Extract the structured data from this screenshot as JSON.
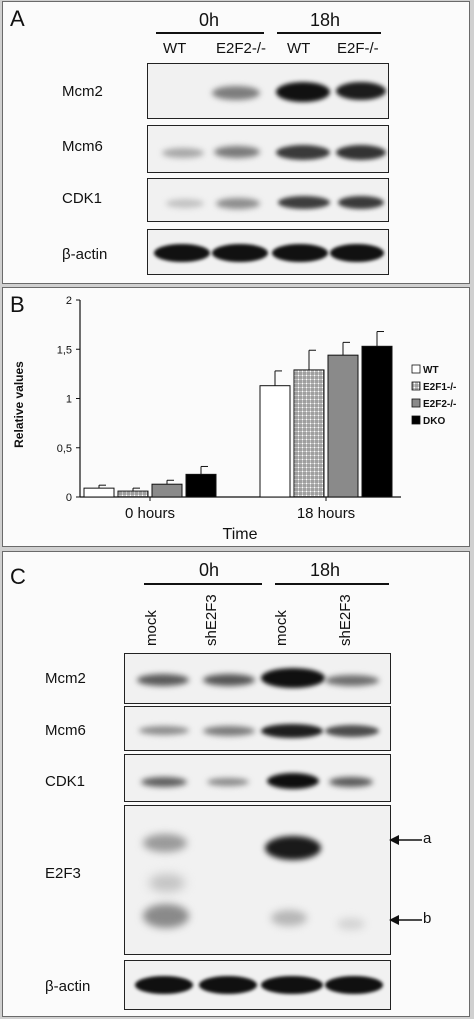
{
  "panel_a": {
    "label": "A",
    "timepoints": [
      "0h",
      "18h"
    ],
    "lanes": [
      "WT",
      "E2F2-/-",
      "WT",
      "E2F-/-"
    ],
    "rows": [
      "Mcm2",
      "Mcm6",
      "CDK1",
      "β-actin"
    ]
  },
  "panel_b": {
    "label": "B",
    "chart_data": {
      "type": "bar",
      "categories": [
        "0 hours",
        "18 hours"
      ],
      "series": [
        {
          "name": "WT",
          "values": [
            0.09,
            1.13
          ],
          "errors": [
            0.03,
            0.15
          ],
          "fill": "white"
        },
        {
          "name": "E2F1-/-",
          "values": [
            0.06,
            1.29
          ],
          "errors": [
            0.03,
            0.2
          ],
          "fill": "hatch"
        },
        {
          "name": "E2F2-/-",
          "values": [
            0.13,
            1.44
          ],
          "errors": [
            0.04,
            0.13
          ],
          "fill": "#8a8a8a"
        },
        {
          "name": "DKO",
          "values": [
            0.23,
            1.53
          ],
          "errors": [
            0.08,
            0.15
          ],
          "fill": "#000000"
        }
      ],
      "xlabel": "Time",
      "ylabel": "Relative values",
      "ylim": [
        0,
        2
      ],
      "yticks": [
        "0",
        "0,5",
        "1",
        "1,5",
        "2"
      ],
      "legend_position": "right"
    }
  },
  "panel_c": {
    "label": "C",
    "timepoints": [
      "0h",
      "18h"
    ],
    "lanes": [
      "mock",
      "shE2F3",
      "mock",
      "shE2F3"
    ],
    "rows": [
      "Mcm2",
      "Mcm6",
      "CDK1",
      "E2F3",
      "β-actin"
    ],
    "arrows": [
      "a",
      "b"
    ]
  }
}
